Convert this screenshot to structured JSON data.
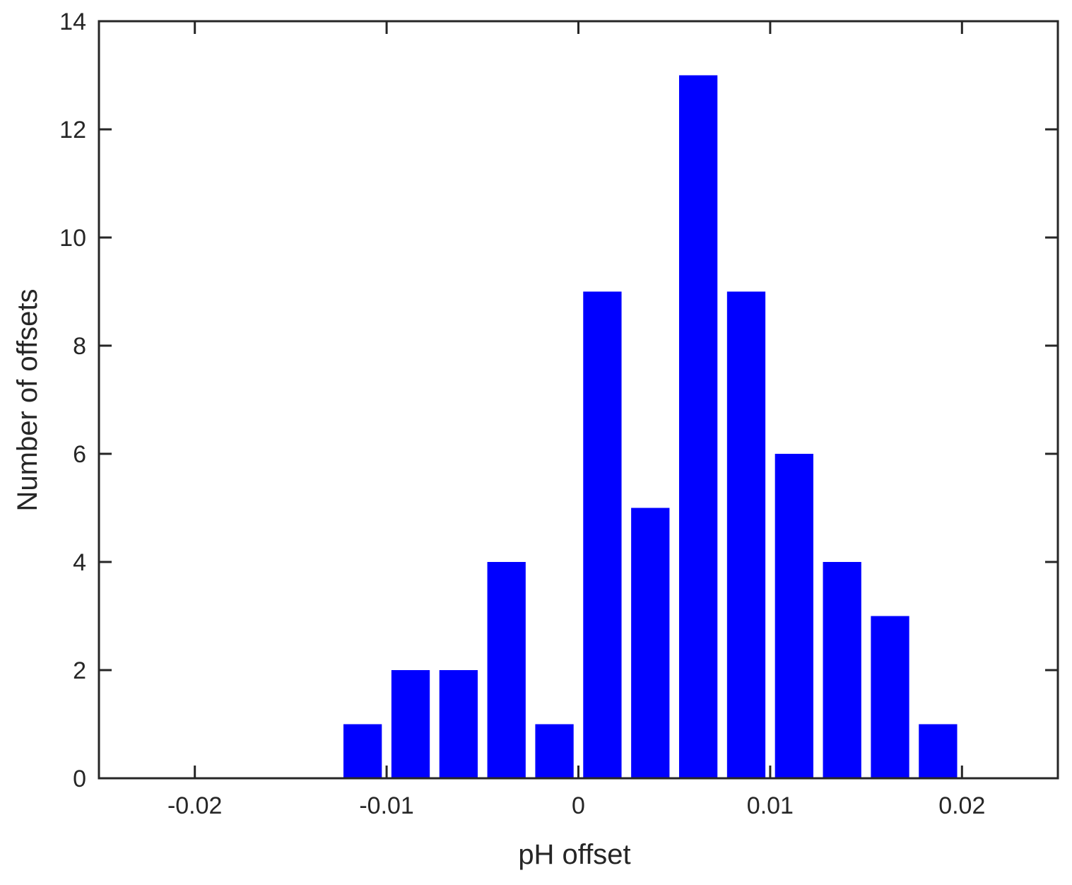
{
  "chart_data": {
    "type": "bar",
    "title": "",
    "xlabel": "pH offset",
    "ylabel": "Number of offsets",
    "xlim": [
      -0.025,
      0.025
    ],
    "ylim": [
      0,
      14
    ],
    "x_ticks": [
      -0.02,
      -0.01,
      0,
      0.01,
      0.02
    ],
    "x_tick_labels": [
      "-0.02",
      "-0.01",
      "0",
      "0.01",
      "0.02"
    ],
    "y_ticks": [
      0,
      2,
      4,
      6,
      8,
      10,
      12,
      14
    ],
    "y_tick_labels": [
      "0",
      "2",
      "4",
      "6",
      "8",
      "10",
      "12",
      "14"
    ],
    "bin_width": 0.0025,
    "bar_width_fraction": 0.8,
    "bar_color": "#0000ff",
    "grid": false,
    "legend": "none",
    "series": [
      {
        "x": [
          -0.01125,
          -0.00875,
          -0.00625,
          -0.00375,
          -0.00125,
          0.00125,
          0.00375,
          0.00625,
          0.00875,
          0.01125,
          0.01375,
          0.01625,
          0.01875
        ],
        "values": [
          1,
          2,
          2,
          4,
          1,
          9,
          5,
          13,
          9,
          6,
          4,
          3,
          1
        ]
      }
    ]
  }
}
